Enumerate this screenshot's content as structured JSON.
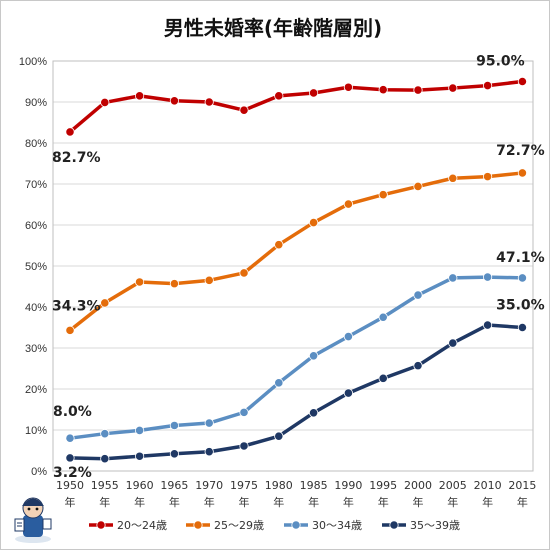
{
  "chart_data": {
    "type": "line",
    "title": "男性未婚率(年齢階層別)",
    "x": [
      1950,
      1955,
      1960,
      1965,
      1970,
      1975,
      1980,
      1985,
      1990,
      1995,
      2000,
      2005,
      2010,
      2015
    ],
    "x_year_suffix": "年",
    "ylim": [
      0,
      100
    ],
    "yticks": [
      "0%",
      "10%",
      "20%",
      "30%",
      "40%",
      "50%",
      "60%",
      "70%",
      "80%",
      "90%",
      "100%"
    ],
    "grid": true,
    "legend_position": "bottom",
    "series": [
      {
        "name": "20～24歳",
        "color": "#c00000",
        "values": [
          82.7,
          89.9,
          91.5,
          90.3,
          90.0,
          88.0,
          91.5,
          92.2,
          93.6,
          93.0,
          92.9,
          93.4,
          94.0,
          95.0
        ]
      },
      {
        "name": "25～29歳",
        "color": "#e46c0a",
        "values": [
          34.3,
          41.0,
          46.1,
          45.7,
          46.5,
          48.3,
          55.2,
          60.6,
          65.1,
          67.4,
          69.4,
          71.4,
          71.8,
          72.7
        ]
      },
      {
        "name": "30～34歳",
        "color": "#5b8ec2",
        "values": [
          8.0,
          9.1,
          9.9,
          11.1,
          11.7,
          14.3,
          21.5,
          28.1,
          32.8,
          37.5,
          42.9,
          47.1,
          47.3,
          47.1
        ]
      },
      {
        "name": "35～39歳",
        "color": "#1f3864",
        "values": [
          3.2,
          3.0,
          3.6,
          4.2,
          4.7,
          6.1,
          8.5,
          14.2,
          19.0,
          22.6,
          25.7,
          31.2,
          35.6,
          35.0
        ]
      }
    ],
    "annotations": [
      {
        "series": 0,
        "point": 0,
        "text": "82.7%"
      },
      {
        "series": 0,
        "point": 13,
        "text": "95.0%"
      },
      {
        "series": 1,
        "point": 0,
        "text": "34.3%"
      },
      {
        "series": 1,
        "point": 13,
        "text": "72.7%"
      },
      {
        "series": 2,
        "point": 0,
        "text": "8.0%"
      },
      {
        "series": 2,
        "point": 13,
        "text": "47.1%"
      },
      {
        "series": 3,
        "point": 0,
        "text": "3.2%"
      },
      {
        "series": 3,
        "point": 13,
        "text": "35.0%"
      }
    ]
  }
}
